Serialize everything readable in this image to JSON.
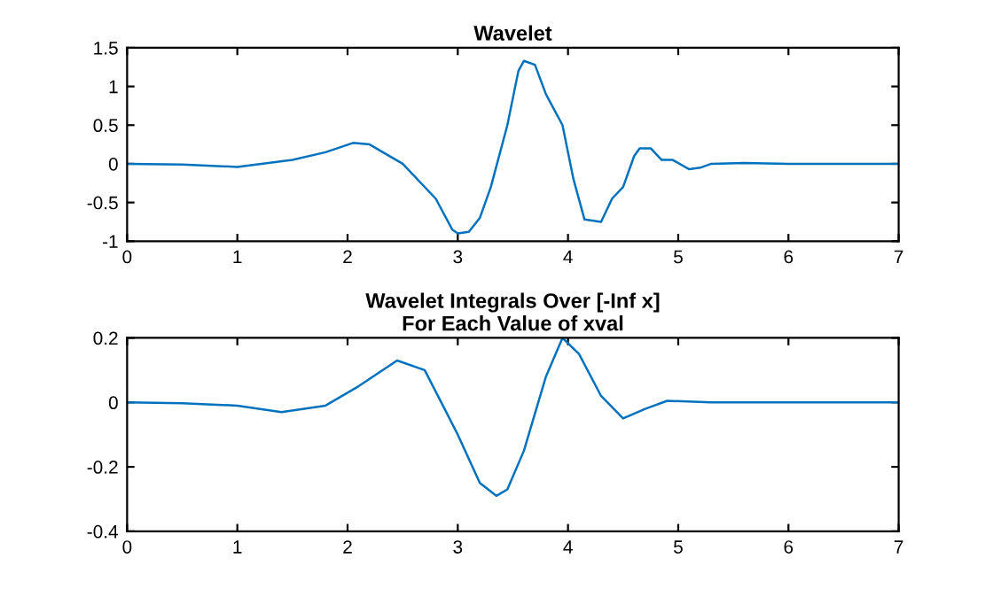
{
  "chart_data": [
    {
      "type": "line",
      "title": "Wavelet",
      "grid": false,
      "legend": false,
      "series": [
        {
          "color": "#0072bd",
          "x": [
            0,
            0.5,
            1,
            1.5,
            1.8,
            2.05,
            2.2,
            2.5,
            2.8,
            2.95,
            3.0,
            3.1,
            3.2,
            3.3,
            3.45,
            3.55,
            3.6,
            3.7,
            3.8,
            3.95,
            4.05,
            4.15,
            4.3,
            4.4,
            4.5,
            4.6,
            4.65,
            4.75,
            4.85,
            4.95,
            5.1,
            5.2,
            5.3,
            5.6,
            6,
            7
          ],
          "values": [
            0,
            -0.01,
            -0.04,
            0.05,
            0.15,
            0.27,
            0.25,
            0.0,
            -0.45,
            -0.85,
            -0.9,
            -0.88,
            -0.7,
            -0.3,
            0.5,
            1.2,
            1.33,
            1.28,
            0.9,
            0.5,
            -0.2,
            -0.72,
            -0.75,
            -0.45,
            -0.3,
            0.1,
            0.2,
            0.2,
            0.05,
            0.05,
            -0.07,
            -0.05,
            0.0,
            0.01,
            0,
            0
          ]
        }
      ],
      "xlim": [
        0,
        7
      ],
      "xticks": [
        0,
        1,
        2,
        3,
        4,
        5,
        6,
        7
      ],
      "ylim": [
        -1,
        1.5
      ],
      "yticks": [
        -1,
        -0.5,
        0,
        0.5,
        1,
        1.5
      ]
    },
    {
      "type": "line",
      "title": "Wavelet Integrals Over [-Inf x]\nFor Each Value of xval",
      "grid": false,
      "legend": false,
      "series": [
        {
          "color": "#0072bd",
          "x": [
            0,
            0.5,
            1,
            1.4,
            1.8,
            2.1,
            2.45,
            2.7,
            3.0,
            3.2,
            3.35,
            3.45,
            3.6,
            3.8,
            3.95,
            4.1,
            4.3,
            4.5,
            4.7,
            4.9,
            5.3,
            6,
            7
          ],
          "values": [
            0,
            -0.003,
            -0.01,
            -0.03,
            -0.01,
            0.05,
            0.13,
            0.1,
            -0.1,
            -0.25,
            -0.29,
            -0.27,
            -0.15,
            0.08,
            0.2,
            0.15,
            0.02,
            -0.05,
            -0.02,
            0.005,
            0,
            0,
            0
          ]
        }
      ],
      "xlim": [
        0,
        7
      ],
      "xticks": [
        0,
        1,
        2,
        3,
        4,
        5,
        6,
        7
      ],
      "ylim": [
        -0.4,
        0.2
      ],
      "yticks": [
        -0.4,
        -0.2,
        0,
        0.2
      ]
    }
  ]
}
